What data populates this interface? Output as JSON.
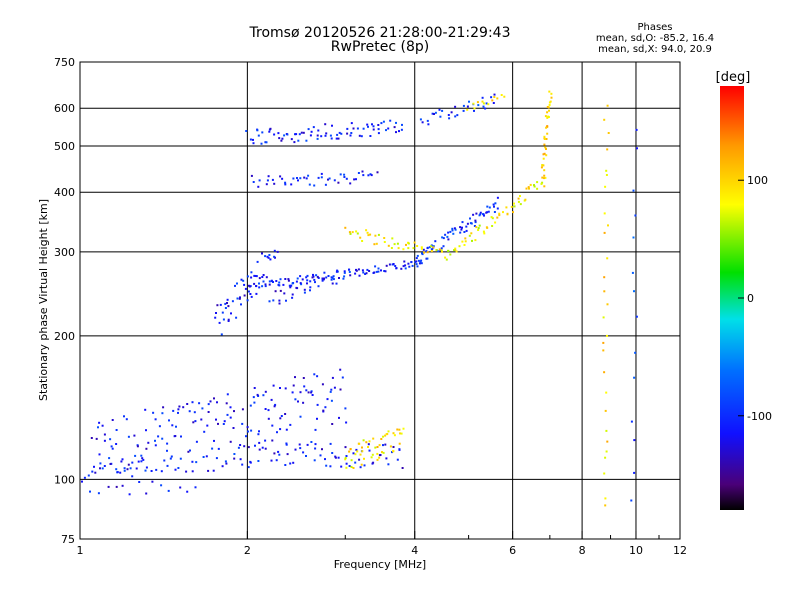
{
  "header": {
    "title": "Tromsø 20120526 21:28:00-21:29:43",
    "subtitle": "RwPretec (8p)"
  },
  "phases": {
    "heading": "Phases",
    "line_o": "mean, sd,O: -85.2, 16.4",
    "line_x": "mean, sd,X: 94.0, 20.9"
  },
  "colorbar": {
    "label": "[deg]",
    "ticks": [
      "100",
      "0",
      "-100"
    ],
    "tick_values": [
      100,
      0,
      -100
    ],
    "range": [
      -180,
      180
    ]
  },
  "chart_data": {
    "type": "scatter",
    "xlabel": "Frequency [MHz]",
    "ylabel": "Stationary phase Virtual Height [km]",
    "xscale": "log",
    "yscale": "log",
    "xlim": [
      1,
      12
    ],
    "ylim": [
      75,
      750
    ],
    "x_ticks": [
      1,
      2,
      4,
      6,
      8,
      10,
      12
    ],
    "x_tick_labels": [
      "1",
      "2",
      "4",
      "6",
      "8",
      "10",
      "12"
    ],
    "x_minor_ticks": [
      3,
      5,
      7,
      9,
      11
    ],
    "y_ticks": [
      75,
      100,
      200,
      300,
      400,
      500,
      600,
      750
    ],
    "y_tick_labels": [
      "75",
      "100",
      "200",
      "300",
      "400",
      "500",
      "600",
      "750"
    ],
    "grid": true,
    "traces": [
      {
        "name": "",
        "f_start": 1.0,
        "f_end": 2.0,
        "h_start": 103,
        "h_end": 110,
        "phase": -105,
        "count": 45,
        "spread": 0.04
      },
      {
        "name": "",
        "f_start": 1.05,
        "f_end": 3.0,
        "h_start": 115,
        "h_end": 150,
        "phase": -110,
        "count": 170,
        "spread": 0.14
      },
      {
        "name": "",
        "f_start": 2.0,
        "f_end": 3.8,
        "h_start": 114,
        "h_end": 112,
        "phase": -110,
        "count": 70,
        "spread": 0.06
      },
      {
        "name": "",
        "f_start": 3.0,
        "f_end": 3.8,
        "h_start": 110,
        "h_end": 122,
        "phase": 95,
        "count": 50,
        "spread": 0.06
      },
      {
        "name": "",
        "f_start": 1.05,
        "f_end": 1.6,
        "h_start": 95,
        "h_end": 97,
        "phase": -110,
        "count": 14,
        "spread": 0.03
      },
      {
        "name": "",
        "f_start": 1.75,
        "f_end": 2.25,
        "h_start": 215,
        "h_end": 290,
        "phase": -110,
        "count": 55,
        "spread": 0.09
      },
      {
        "name": "",
        "f_start": 2.0,
        "f_end": 4.2,
        "h_start": 252,
        "h_end": 285,
        "phase": -105,
        "count": 110,
        "spread": 0.02
      },
      {
        "name": "",
        "f_start": 2.2,
        "f_end": 2.9,
        "h_start": 240,
        "h_end": 265,
        "phase": -115,
        "count": 30,
        "spread": 0.04
      },
      {
        "name": "",
        "f_start": 4.0,
        "f_end": 5.65,
        "h_start": 285,
        "h_end": 380,
        "phase": -100,
        "count": 70,
        "spread": 0.03
      },
      {
        "name": "",
        "f_start": 3.0,
        "f_end": 4.6,
        "h_start": 330,
        "h_end": 295,
        "phase": 90,
        "count": 45,
        "spread": 0.03
      },
      {
        "name": "",
        "f_start": 4.6,
        "f_end": 6.8,
        "h_start": 295,
        "h_end": 420,
        "phase": 85,
        "count": 55,
        "spread": 0.03
      },
      {
        "name": "",
        "f_start": 6.8,
        "f_end": 7.0,
        "h_start": 420,
        "h_end": 650,
        "phase": 100,
        "count": 40,
        "spread": 0.02
      },
      {
        "name": "",
        "f_start": 2.05,
        "f_end": 3.4,
        "h_start": 420,
        "h_end": 430,
        "phase": -110,
        "count": 45,
        "spread": 0.03
      },
      {
        "name": "",
        "f_start": 2.0,
        "f_end": 3.8,
        "h_start": 520,
        "h_end": 550,
        "phase": -105,
        "count": 80,
        "spread": 0.04
      },
      {
        "name": "",
        "f_start": 4.1,
        "f_end": 5.6,
        "h_start": 560,
        "h_end": 630,
        "phase": -100,
        "count": 30,
        "spread": 0.03
      },
      {
        "name": "",
        "f_start": 5.0,
        "f_end": 5.8,
        "h_start": 600,
        "h_end": 640,
        "phase": 90,
        "count": 12,
        "spread": 0.02
      },
      {
        "name": "",
        "f_start": 8.8,
        "f_end": 8.85,
        "h_start": 85,
        "h_end": 620,
        "phase": 95,
        "count": 28,
        "spread": 0.05
      },
      {
        "name": "",
        "f_start": 9.9,
        "f_end": 10.0,
        "h_start": 90,
        "h_end": 560,
        "phase": -90,
        "count": 14,
        "spread": 0.05
      }
    ]
  }
}
